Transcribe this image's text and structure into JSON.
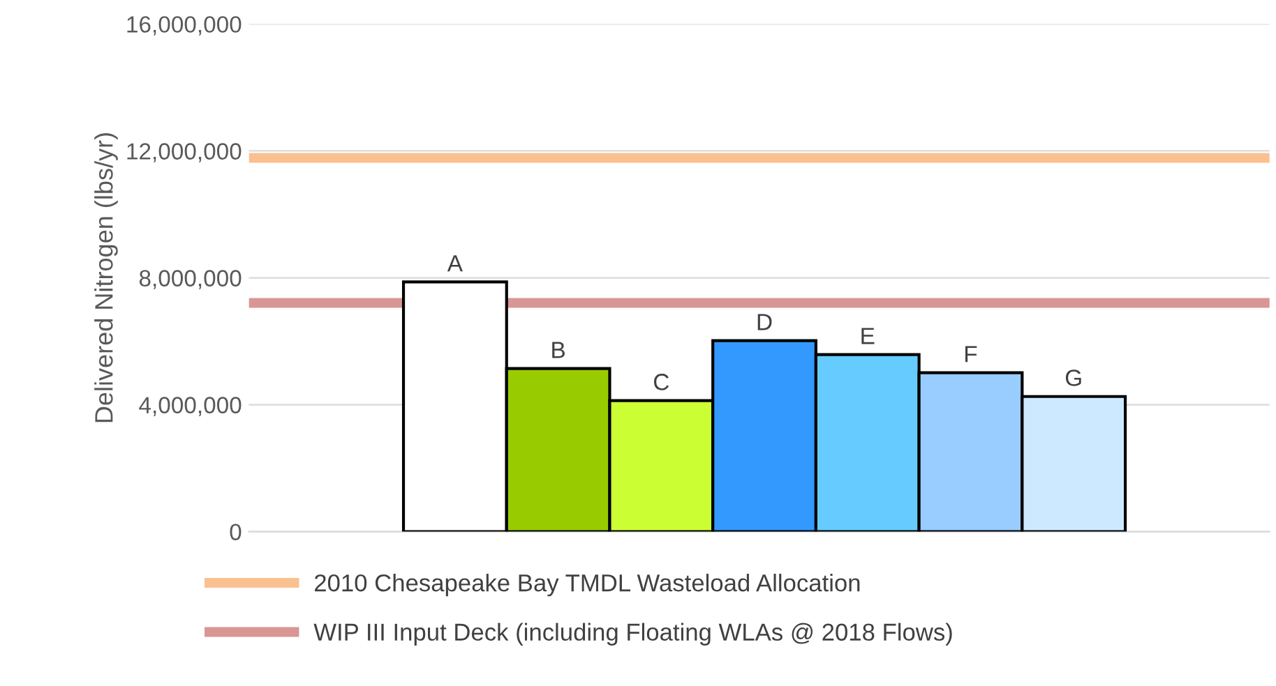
{
  "chart_data": {
    "type": "bar",
    "ylabel": "Delivered Nitrogen (lbs/yr)",
    "categories": [
      "A",
      "B",
      "C",
      "D",
      "E",
      "F",
      "G"
    ],
    "values": [
      7870000,
      5140000,
      4130000,
      6020000,
      5580000,
      5010000,
      4260000
    ],
    "colors": [
      "#ffffff",
      "#99cc00",
      "#ccff33",
      "#3399ff",
      "#66ccff",
      "#99ccff",
      "#cce9ff"
    ],
    "ylim": [
      0,
      16000000
    ],
    "yticks": [
      {
        "value": 0,
        "label": "0"
      },
      {
        "value": 4000000,
        "label": "4,000,000"
      },
      {
        "value": 8000000,
        "label": "8,000,000"
      },
      {
        "value": 12000000,
        "label": "12,000,000"
      },
      {
        "value": 16000000,
        "label": "16,000,000"
      }
    ],
    "grid": "y",
    "legend": "bottom",
    "ref_lines": [
      {
        "axis": "y",
        "value": 11780000,
        "label": "2010 Chesapeake Bay TMDL Wasteload Allocation",
        "color": "#fac090"
      },
      {
        "axis": "y",
        "value": 7210000,
        "label": "WIP III Input Deck (including Floating WLAs @ 2018 Flows)",
        "color": "#d99694"
      }
    ]
  }
}
